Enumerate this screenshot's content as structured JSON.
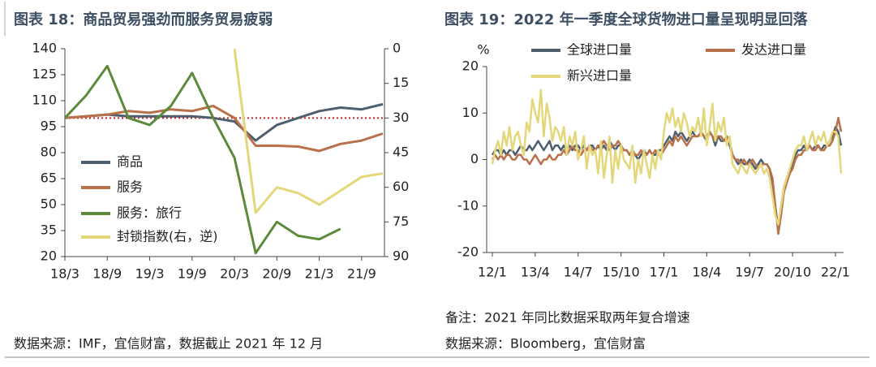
{
  "chart_data": [
    {
      "type": "line",
      "title": "图表 18：商品贸易强劲而服务贸易疲弱",
      "categories": [
        "18/3",
        null,
        "18/9",
        null,
        "19/3",
        null,
        "19/9",
        null,
        "20/3",
        null,
        "20/9",
        null,
        "21/3",
        null,
        "21/9",
        null
      ],
      "series": [
        {
          "name": "商品",
          "color": "#4d5f6f",
          "values": [
            100,
            101,
            102,
            101,
            101,
            101,
            101,
            100,
            98,
            87,
            96,
            100,
            104,
            106,
            105,
            108
          ]
        },
        {
          "name": "服务",
          "color": "#b8714a",
          "values": [
            100,
            101,
            102,
            104,
            103,
            105,
            104,
            107,
            100,
            84,
            84,
            83.5,
            81,
            85,
            87,
            91
          ]
        },
        {
          "name": "服务：旅行",
          "color": "#5a8a3a",
          "values": [
            100,
            113,
            130,
            100,
            96,
            107,
            126,
            100,
            77,
            22,
            40,
            32,
            30,
            36,
            null,
            null
          ]
        },
        {
          "name": "封锁指数(右，逆)",
          "color": "#e3d77a",
          "axis": "y2",
          "values": [
            null,
            null,
            null,
            null,
            null,
            null,
            null,
            null,
            0,
            71,
            60,
            62.5,
            67.5,
            61.5,
            55.5,
            54
          ]
        }
      ],
      "ylim": [
        20,
        140
      ],
      "yticks": [
        20,
        35,
        50,
        65,
        80,
        95,
        110,
        125,
        140
      ],
      "y2lim": [
        90,
        0
      ],
      "y2ticks": [
        0,
        15,
        30,
        45,
        60,
        75,
        90
      ],
      "reference_line": {
        "value": 100,
        "color": "#d42020"
      },
      "source": "数据来源：IMF，宜信财富，数据截止 2021 年 12 月"
    },
    {
      "type": "line",
      "title": "图表 19：2022 年一季度全球货物进口量呈现明显回落",
      "y_label": "%",
      "categories": [
        "12/1",
        null,
        null,
        null,
        null,
        null,
        null,
        null,
        null,
        null,
        null,
        null,
        null,
        null,
        null,
        "13/4",
        null,
        null,
        null,
        null,
        null,
        null,
        null,
        null,
        null,
        null,
        null,
        null,
        null,
        null,
        "14/7",
        null,
        null,
        null,
        null,
        null,
        null,
        null,
        null,
        null,
        null,
        null,
        null,
        null,
        null,
        "15/10",
        null,
        null,
        null,
        null,
        null,
        null,
        null,
        null,
        null,
        null,
        null,
        null,
        null,
        null,
        "17/1",
        null,
        null,
        null,
        null,
        null,
        null,
        null,
        null,
        null,
        null,
        null,
        null,
        null,
        null,
        "18/4",
        null,
        null,
        null,
        null,
        null,
        null,
        null,
        null,
        null,
        null,
        null,
        null,
        null,
        null,
        "19/7",
        null,
        null,
        null,
        null,
        null,
        null,
        null,
        null,
        null,
        null,
        null,
        null,
        null,
        null,
        "20/10",
        null,
        null,
        null,
        null,
        null,
        null,
        null,
        null,
        null,
        null,
        null,
        null,
        null,
        null,
        "22/1",
        null,
        null
      ],
      "series": [
        {
          "name": "全球进口量",
          "color": "#4d5f6f",
          "values": [
            1,
            2,
            2,
            1,
            2,
            1,
            2,
            2,
            1,
            2,
            3,
            2,
            2,
            3,
            2,
            3,
            4,
            3,
            2,
            3,
            4,
            2,
            3,
            3,
            2,
            3,
            2,
            3,
            2,
            3,
            3,
            2,
            3,
            2,
            3,
            3,
            2,
            3,
            2,
            3,
            2,
            4,
            3,
            2,
            3,
            3,
            2,
            2,
            1,
            2,
            1,
            0,
            1,
            2,
            1,
            2,
            1,
            1,
            2,
            2,
            3,
            4,
            5,
            4,
            6,
            5,
            6,
            5,
            4,
            5,
            6,
            5,
            5,
            6,
            5,
            4,
            6,
            5,
            3,
            5,
            4,
            4,
            5,
            3,
            1,
            0,
            -1,
            0,
            -1,
            -1,
            0,
            -1,
            -2,
            -1,
            0,
            -1,
            -1,
            -2,
            -5,
            -10,
            -15,
            -10,
            -6,
            -4,
            -3,
            -1,
            1,
            2,
            2,
            3,
            2,
            3,
            2,
            3,
            3,
            2,
            3,
            3,
            4,
            5,
            7,
            6,
            3
          ]
        },
        {
          "name": "发达进口量",
          "color": "#b8714a",
          "values": [
            0,
            1,
            0,
            1,
            0,
            1,
            1,
            0,
            0,
            1,
            1,
            0,
            0,
            -1,
            0,
            1,
            0,
            -1,
            0,
            0,
            1,
            0,
            0,
            1,
            1,
            2,
            1,
            2,
            3,
            2,
            2,
            1,
            2,
            2,
            3,
            2,
            2,
            3,
            3,
            4,
            3,
            2,
            3,
            3,
            4,
            3,
            2,
            2,
            1,
            2,
            1,
            1,
            2,
            1,
            1,
            2,
            1,
            2,
            1,
            1,
            2,
            3,
            4,
            3,
            5,
            4,
            5,
            4,
            3,
            4,
            5,
            5,
            5,
            6,
            5,
            5,
            6,
            5,
            4,
            5,
            5,
            4,
            5,
            4,
            1,
            0,
            0,
            -1,
            0,
            -1,
            -1,
            0,
            -1,
            -2,
            -1,
            -1,
            -1,
            -2,
            -4,
            -10,
            -16,
            -12,
            -7,
            -5,
            -3,
            -2,
            0,
            1,
            1,
            2,
            2,
            3,
            2,
            2,
            3,
            2,
            2,
            3,
            3,
            4,
            6,
            9,
            6
          ]
        },
        {
          "name": "新兴进口量",
          "color": "#e3d77a",
          "values": [
            -1,
            2,
            4,
            1,
            6,
            3,
            7,
            2,
            5,
            6,
            3,
            1,
            8,
            6,
            13,
            10,
            8,
            15,
            5,
            12,
            9,
            4,
            7,
            6,
            4,
            7,
            1,
            5,
            3,
            6,
            0,
            2,
            5,
            -2,
            3,
            1,
            2,
            -3,
            4,
            -4,
            1,
            5,
            -5,
            2,
            -2,
            3,
            0,
            -1,
            -2,
            3,
            -5,
            0,
            -3,
            2,
            -1,
            -4,
            1,
            -2,
            2,
            0,
            6,
            10,
            8,
            11,
            7,
            9,
            6,
            10,
            8,
            5,
            7,
            6,
            9,
            5,
            11,
            3,
            7,
            12,
            4,
            8,
            6,
            9,
            3,
            5,
            -1,
            -2,
            -3,
            -1,
            -2,
            -3,
            -1,
            -2,
            -3,
            -2,
            -1,
            -3,
            -2,
            -4,
            -8,
            -12,
            -14,
            -10,
            -6,
            -4,
            -2,
            0,
            2,
            3,
            3,
            5,
            2,
            4,
            6,
            3,
            5,
            4,
            6,
            3,
            4,
            6,
            6,
            5,
            -3
          ]
        }
      ],
      "ylim": [
        -20,
        20
      ],
      "yticks": [
        -20,
        -10,
        0,
        10,
        20
      ],
      "note": "备注：2021 年同比数据采取两年复合增速",
      "source": "数据来源：Bloomberg，宜信财富"
    }
  ]
}
